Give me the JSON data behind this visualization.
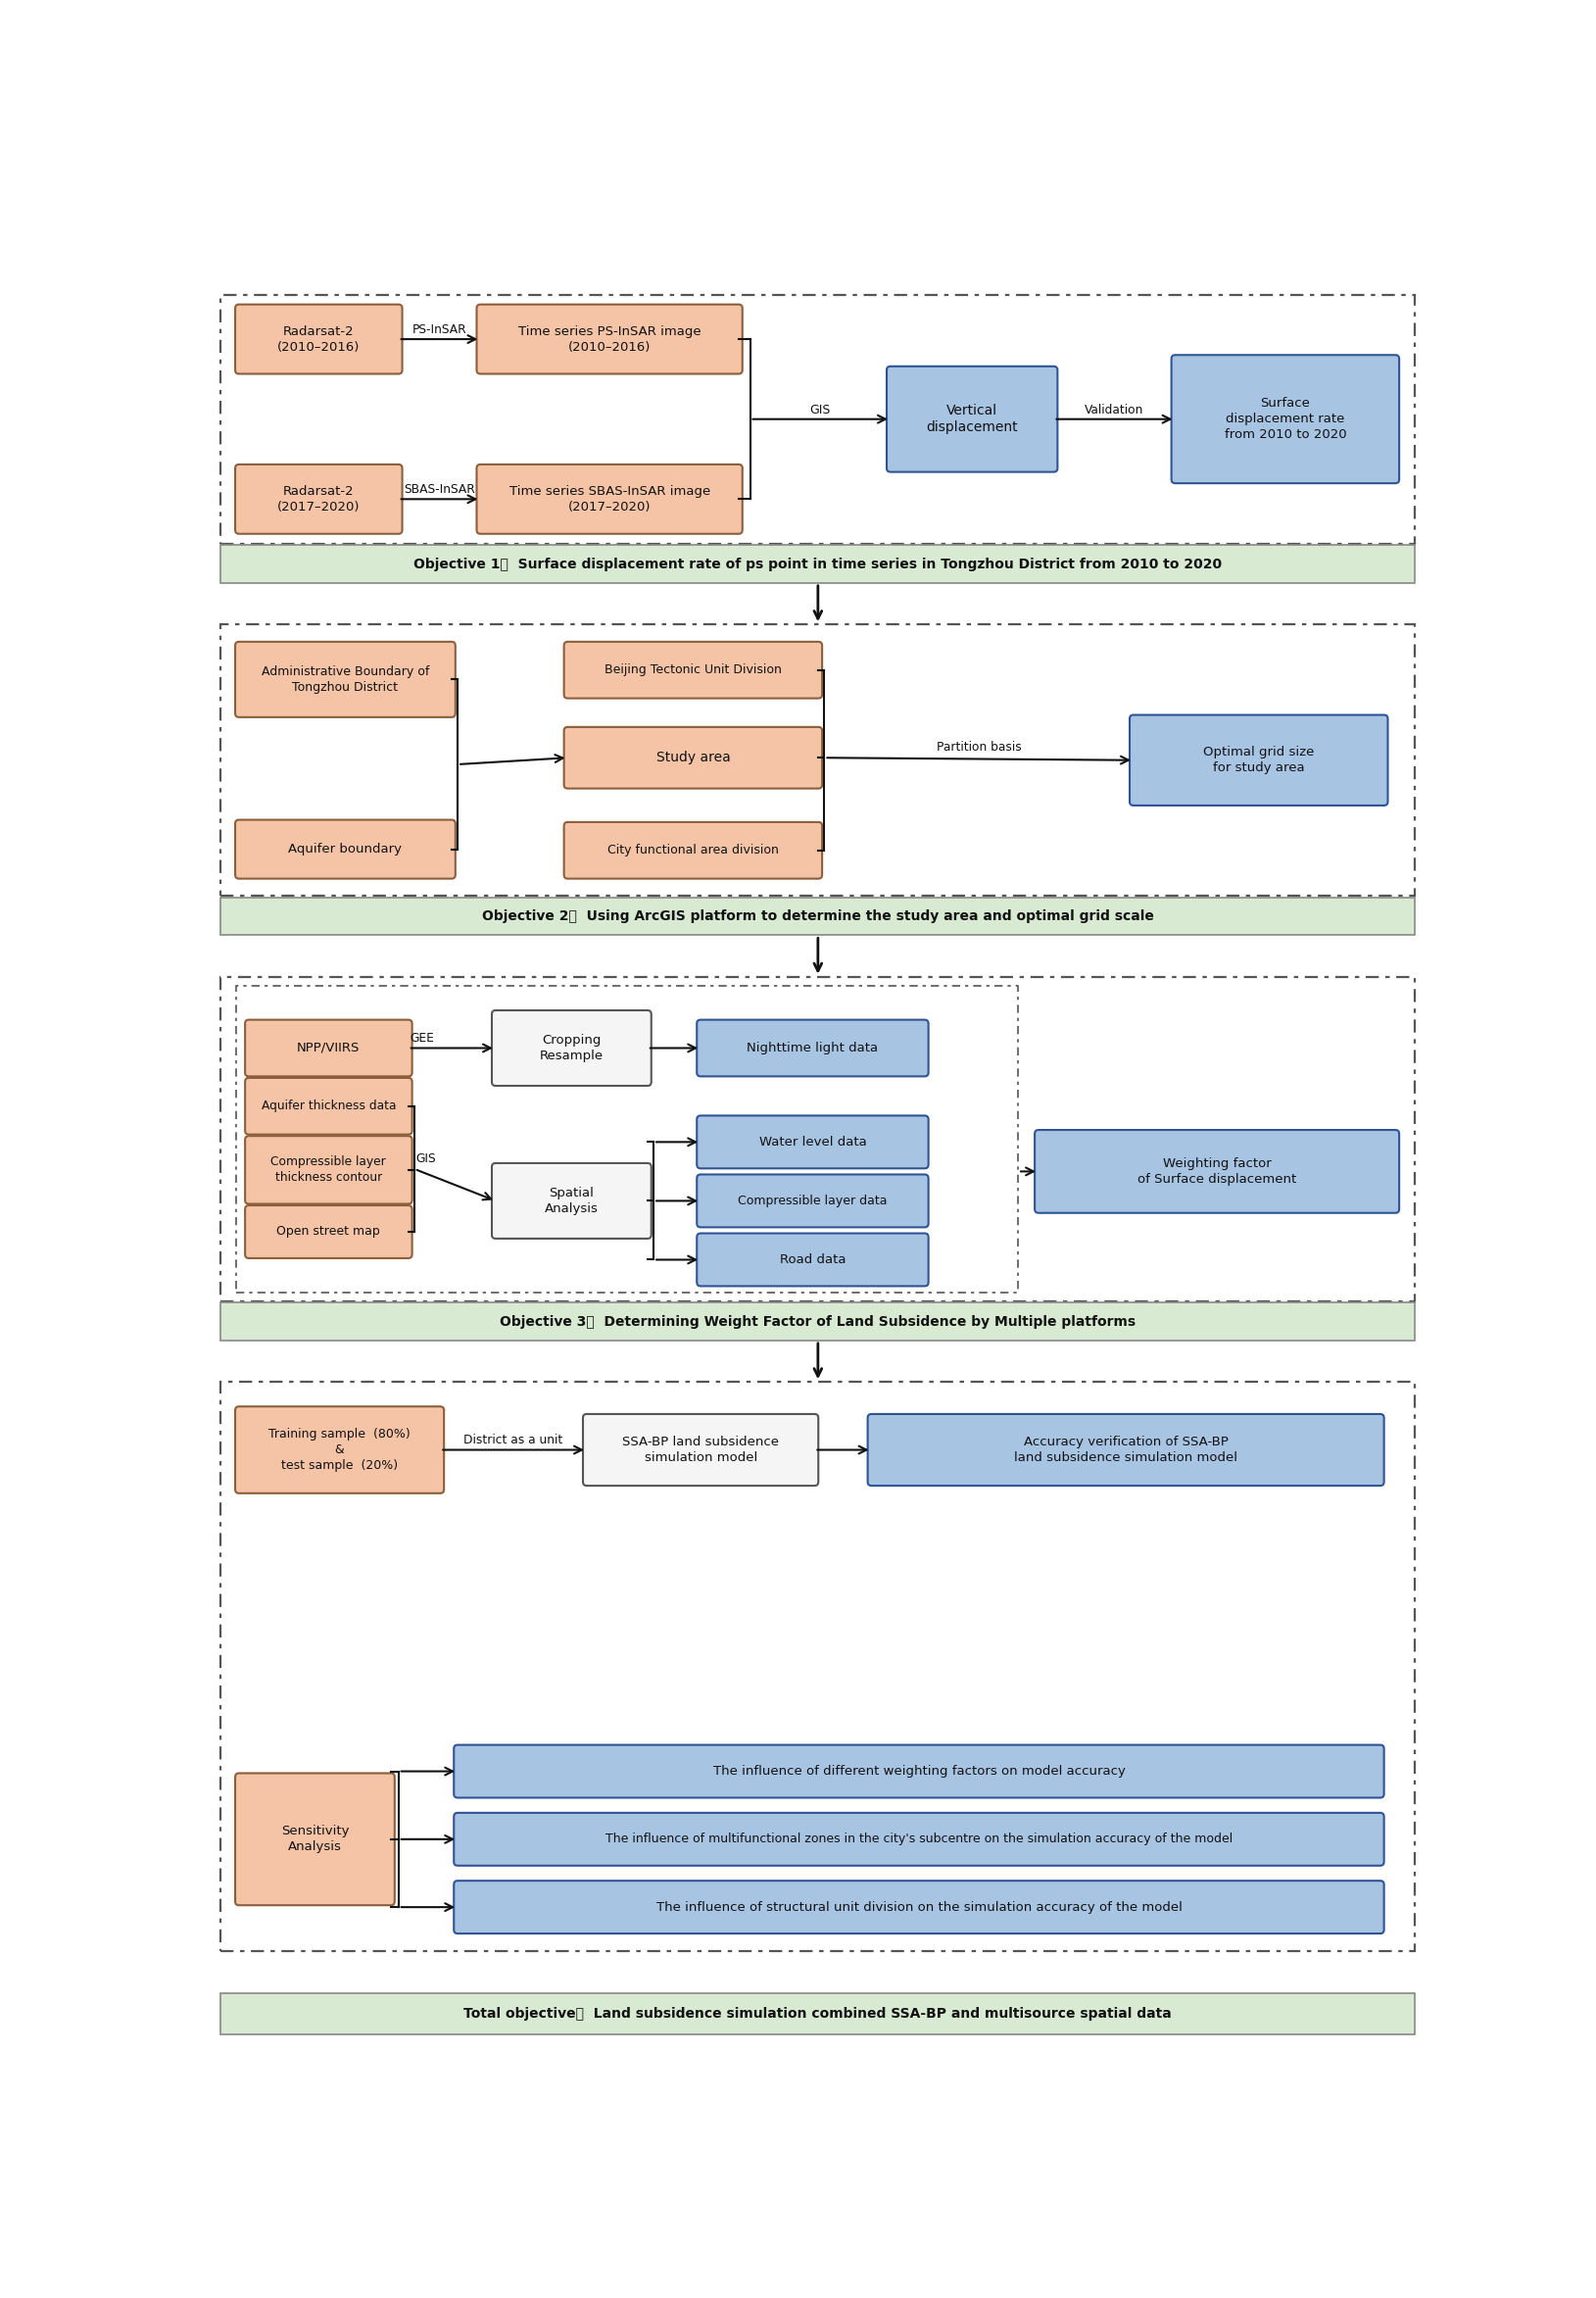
{
  "fig_width": 16.29,
  "fig_height": 23.45,
  "salmon": "#F5C4A7",
  "blue": "#A8C4E3",
  "white_box": "#F5F5F5",
  "green": "#D9EAD3",
  "bg": "#FFFFFF",
  "db": "#555555",
  "sb": "#8B5E3C",
  "bb": "#2F5496",
  "obj1_text": "Objective 1：  Surface displacement rate of ps point in time series in Tongzhou District from 2010 to 2020",
  "obj2_text": "Objective 2：  Using ArcGIS platform to determine the study area and optimal grid scale",
  "obj3_text": "Objective 3：  Determining Weight Factor of Land Subsidence by Multiple platforms",
  "total_text": "Total objective：  Land subsidence simulation combined SSA-BP and multisource spatial data"
}
